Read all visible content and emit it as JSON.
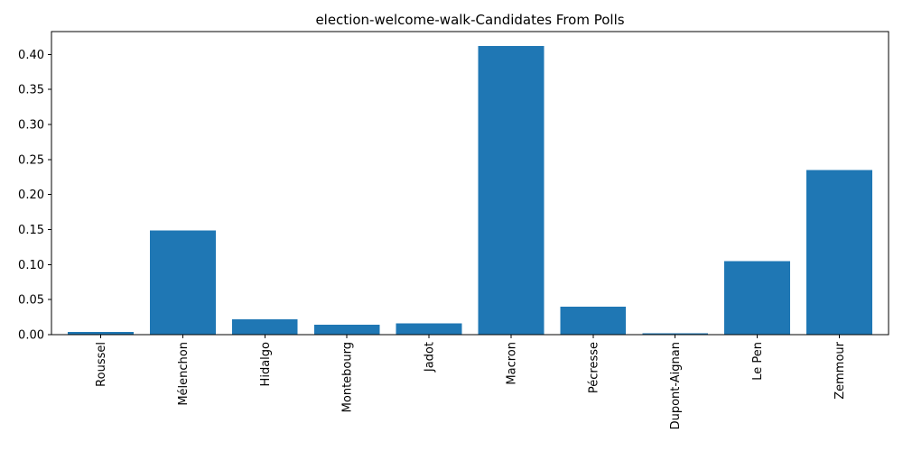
{
  "chart_data": {
    "type": "bar",
    "title": "election-welcome-walk-Candidates From Polls",
    "xlabel": "",
    "ylabel": "",
    "categories": [
      "Roussel",
      "Mélenchon",
      "Hidalgo",
      "Montebourg",
      "Jadot",
      "Macron",
      "Pécresse",
      "Dupont-Aignan",
      "Le Pen",
      "Zemmour"
    ],
    "values": [
      0.004,
      0.149,
      0.022,
      0.014,
      0.016,
      0.412,
      0.04,
      0.002,
      0.105,
      0.235
    ],
    "ylim": [
      0,
      0.4325
    ],
    "yticks": [
      0.0,
      0.05,
      0.1,
      0.15,
      0.2,
      0.25,
      0.3,
      0.35,
      0.4
    ],
    "ytick_labels": [
      "0.00",
      "0.05",
      "0.10",
      "0.15",
      "0.20",
      "0.25",
      "0.30",
      "0.35",
      "0.40"
    ],
    "bar_color": "#1f77b4",
    "grid": false,
    "legend": "none"
  }
}
